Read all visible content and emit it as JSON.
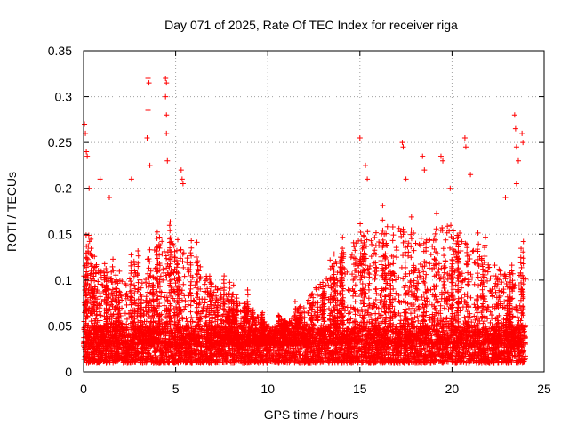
{
  "chart_data": {
    "type": "scatter",
    "title": "Day 071 of 2025, Rate Of TEC Index for receiver riga",
    "xlabel": "GPS time / hours",
    "ylabel": "ROTI / TECUs",
    "xlim": [
      0,
      25
    ],
    "ylim": [
      0,
      0.35
    ],
    "xticks": [
      0,
      5,
      10,
      15,
      20,
      25
    ],
    "yticks": [
      0,
      0.05,
      0.1,
      0.15,
      0.2,
      0.25,
      0.3,
      0.35
    ],
    "xtick_labels": [
      "0",
      "5",
      "10",
      "15",
      "20",
      "25"
    ],
    "ytick_labels": [
      "0",
      "0.05",
      "0.1",
      "0.15",
      "0.2",
      "0.25",
      "0.3",
      "0.35"
    ],
    "grid": true,
    "marker": "+",
    "color": "#ff0000",
    "x_data_range": [
      0,
      24
    ],
    "baseline_band": [
      0.01,
      0.05
    ],
    "envelope_hours": [
      0,
      0.2,
      0.5,
      1,
      2,
      3,
      4,
      5,
      6,
      7,
      8,
      9,
      10,
      11,
      12,
      13,
      14,
      15,
      16,
      17,
      18,
      19,
      20,
      21,
      22,
      23,
      24
    ],
    "envelope_roti": [
      0.1,
      0.16,
      0.13,
      0.11,
      0.1,
      0.11,
      0.14,
      0.15,
      0.12,
      0.1,
      0.08,
      0.07,
      0.05,
      0.05,
      0.08,
      0.1,
      0.13,
      0.15,
      0.16,
      0.16,
      0.15,
      0.16,
      0.16,
      0.14,
      0.12,
      0.11,
      0.12
    ],
    "peak_points": [
      {
        "x": 0.05,
        "y": 0.27
      },
      {
        "x": 0.1,
        "y": 0.26
      },
      {
        "x": 0.15,
        "y": 0.24
      },
      {
        "x": 0.2,
        "y": 0.235
      },
      {
        "x": 0.3,
        "y": 0.2
      },
      {
        "x": 0.9,
        "y": 0.21
      },
      {
        "x": 1.4,
        "y": 0.19
      },
      {
        "x": 2.6,
        "y": 0.21
      },
      {
        "x": 3.5,
        "y": 0.32
      },
      {
        "x": 3.55,
        "y": 0.315
      },
      {
        "x": 3.5,
        "y": 0.285
      },
      {
        "x": 3.45,
        "y": 0.255
      },
      {
        "x": 3.6,
        "y": 0.225
      },
      {
        "x": 4.45,
        "y": 0.32
      },
      {
        "x": 4.5,
        "y": 0.315
      },
      {
        "x": 4.45,
        "y": 0.3
      },
      {
        "x": 4.5,
        "y": 0.28
      },
      {
        "x": 4.5,
        "y": 0.26
      },
      {
        "x": 4.55,
        "y": 0.23
      },
      {
        "x": 5.3,
        "y": 0.22
      },
      {
        "x": 5.35,
        "y": 0.21
      },
      {
        "x": 5.4,
        "y": 0.205
      },
      {
        "x": 15.0,
        "y": 0.255
      },
      {
        "x": 15.3,
        "y": 0.225
      },
      {
        "x": 15.4,
        "y": 0.21
      },
      {
        "x": 17.3,
        "y": 0.25
      },
      {
        "x": 17.35,
        "y": 0.245
      },
      {
        "x": 17.5,
        "y": 0.21
      },
      {
        "x": 18.4,
        "y": 0.235
      },
      {
        "x": 18.5,
        "y": 0.22
      },
      {
        "x": 19.4,
        "y": 0.235
      },
      {
        "x": 19.5,
        "y": 0.23
      },
      {
        "x": 19.9,
        "y": 0.2
      },
      {
        "x": 20.7,
        "y": 0.255
      },
      {
        "x": 20.75,
        "y": 0.245
      },
      {
        "x": 21.0,
        "y": 0.215
      },
      {
        "x": 23.4,
        "y": 0.28
      },
      {
        "x": 23.45,
        "y": 0.265
      },
      {
        "x": 23.5,
        "y": 0.245
      },
      {
        "x": 23.8,
        "y": 0.26
      },
      {
        "x": 23.85,
        "y": 0.25
      },
      {
        "x": 23.6,
        "y": 0.23
      },
      {
        "x": 23.5,
        "y": 0.205
      },
      {
        "x": 22.9,
        "y": 0.19
      }
    ]
  }
}
